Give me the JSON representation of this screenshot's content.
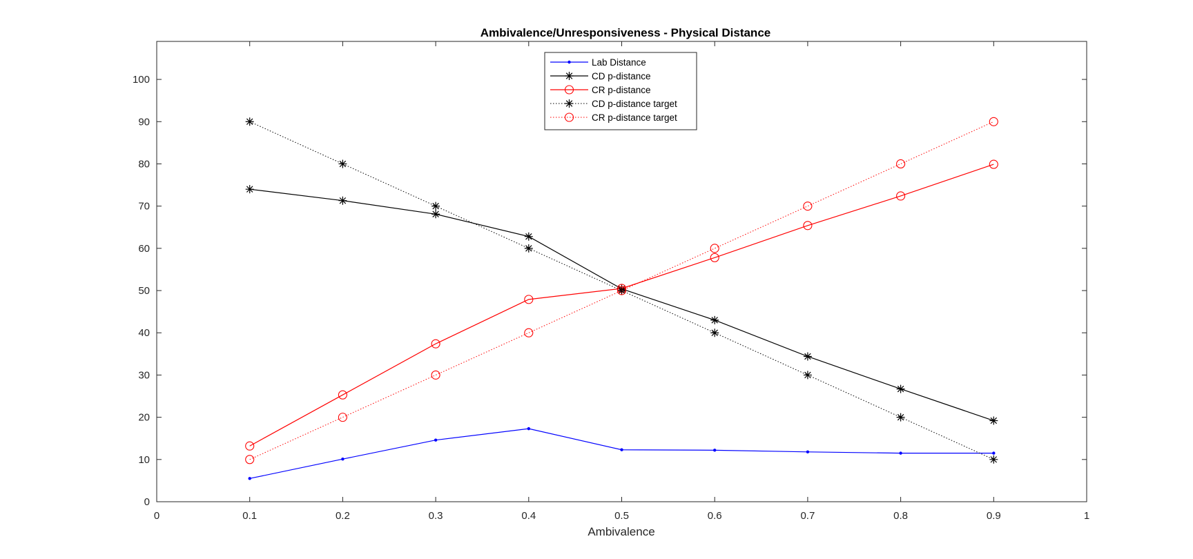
{
  "chart_data": {
    "type": "line",
    "title": "Ambivalence/Unresponsiveness - Physical Distance",
    "xlabel": "Ambivalence",
    "ylabel": "",
    "xlim": [
      0,
      1
    ],
    "ylim": [
      0,
      109
    ],
    "xticks": [
      "0",
      "0.1",
      "0.2",
      "0.3",
      "0.4",
      "0.5",
      "0.6",
      "0.7",
      "0.8",
      "0.9",
      "1"
    ],
    "yticks": [
      "0",
      "10",
      "20",
      "30",
      "40",
      "50",
      "60",
      "70",
      "80",
      "90",
      "100"
    ],
    "grid": false,
    "legend_position": "top-center",
    "x": [
      0.1,
      0.2,
      0.3,
      0.4,
      0.5,
      0.6,
      0.7,
      0.8,
      0.9
    ],
    "series": [
      {
        "name": "Lab Distance",
        "color": "#0000ff",
        "line": "solid",
        "marker": "dot",
        "values": [
          5.5,
          10.1,
          14.6,
          17.3,
          12.3,
          12.2,
          11.8,
          11.5,
          11.5
        ]
      },
      {
        "name": "CD p-distance",
        "color": "#000000",
        "line": "solid",
        "marker": "asterisk",
        "values": [
          74.0,
          71.3,
          68.1,
          62.8,
          50.4,
          43.0,
          34.4,
          26.7,
          19.2
        ]
      },
      {
        "name": "CR p-distance",
        "color": "#ff0000",
        "line": "solid",
        "marker": "circle",
        "values": [
          13.2,
          25.3,
          37.4,
          47.9,
          50.5,
          57.8,
          65.4,
          72.4,
          79.9
        ]
      },
      {
        "name": "CD p-distance target",
        "color": "#000000",
        "line": "dotted",
        "marker": "asterisk",
        "values": [
          90,
          80,
          70,
          60,
          50,
          40,
          30,
          20,
          10
        ]
      },
      {
        "name": "CR p-distance target",
        "color": "#ff0000",
        "line": "dotted",
        "marker": "circle",
        "values": [
          10,
          20,
          30,
          40,
          50,
          60,
          70,
          80,
          90
        ]
      }
    ]
  }
}
